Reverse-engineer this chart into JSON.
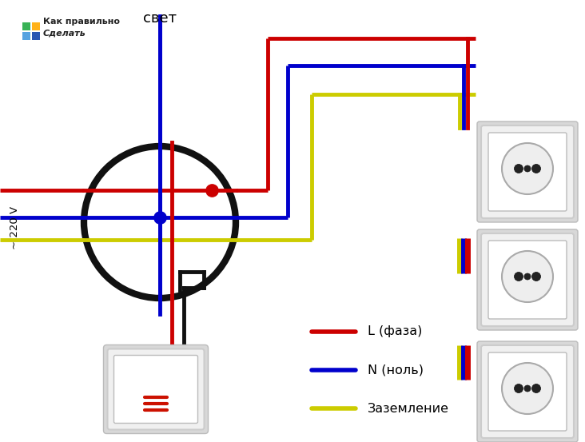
{
  "bg_color": "#ffffff",
  "title_text": "свет",
  "label_220": "~ 220 V",
  "legend": [
    {
      "label": "L (фаза)",
      "color": "#cc0000"
    },
    {
      "label": "N (ноль)",
      "color": "#0000cc"
    },
    {
      "label": "Заземление",
      "color": "#cccc00"
    }
  ],
  "wire_red": "#cc0000",
  "wire_blue": "#0000cc",
  "wire_yellow": "#cccc00",
  "wire_black": "#111111",
  "watermark_line1": "Как правильно",
  "watermark_line2": "Сделать"
}
